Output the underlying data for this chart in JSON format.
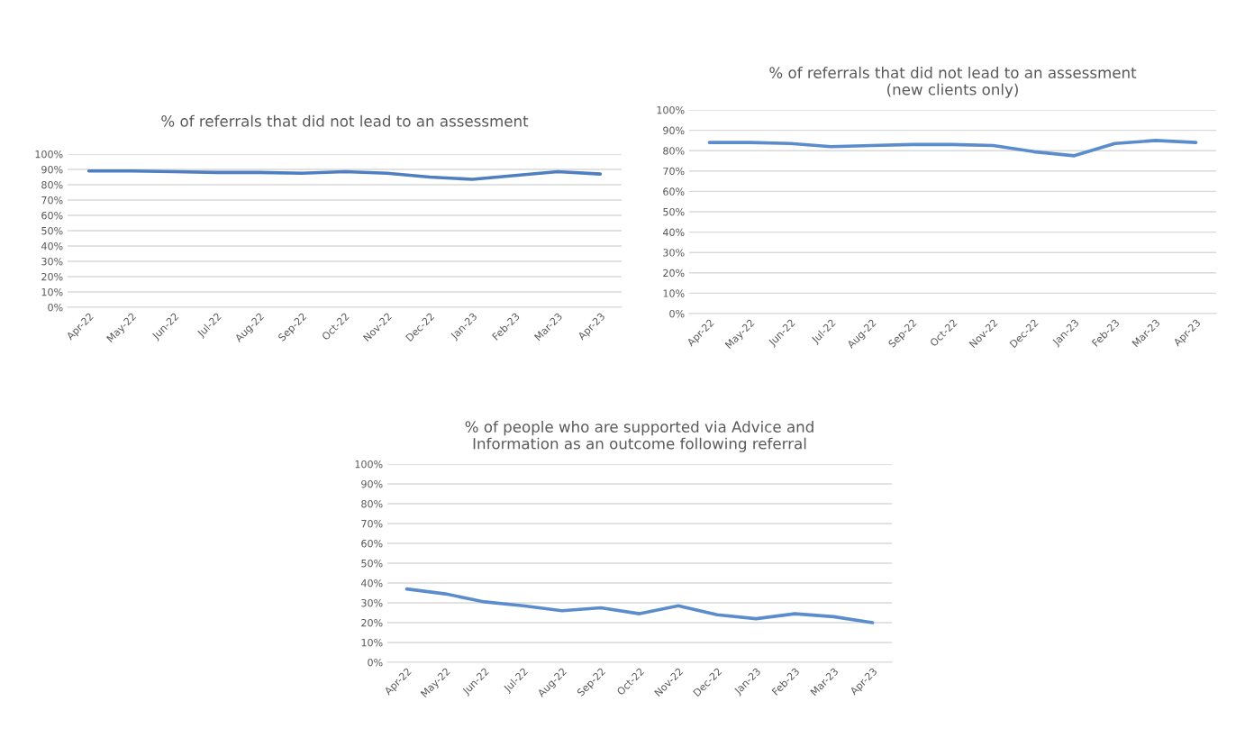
{
  "chart_data": [
    {
      "type": "line",
      "title": "% of referrals that did not lead to an assessment",
      "categories": [
        "Apr-22",
        "May-22",
        "Jun-22",
        "Jul-22",
        "Aug-22",
        "Sep-22",
        "Oct-22",
        "Nov-22",
        "Dec-22",
        "Jan-23",
        "Feb-23",
        "Mar-23",
        "Apr-23"
      ],
      "series": [
        {
          "color": "#4f7fc0",
          "values": [
            89,
            89,
            88.5,
            88,
            88,
            87.5,
            88.5,
            87.5,
            85,
            83.5,
            86,
            88.5,
            87
          ]
        }
      ],
      "ylim": [
        0,
        100
      ],
      "yticks": [
        {
          "value": 0,
          "label": "0%"
        },
        {
          "value": 10,
          "label": "10%"
        },
        {
          "value": 20,
          "label": "20%"
        },
        {
          "value": 30,
          "label": "30%"
        },
        {
          "value": 40,
          "label": "40%"
        },
        {
          "value": 50,
          "label": "50%"
        },
        {
          "value": 60,
          "label": "60%"
        },
        {
          "value": 70,
          "label": "70%"
        },
        {
          "value": 80,
          "label": "80%"
        },
        {
          "value": 90,
          "label": "90%"
        },
        {
          "value": 100,
          "label": "100%"
        }
      ],
      "grid": "y",
      "marker": "none",
      "line_style": "solid"
    },
    {
      "type": "line",
      "title": "% of referrals that did not lead to an assessment\n(new clients only)",
      "categories": [
        "Apr-22",
        "May-22",
        "Jun-22",
        "Jul-22",
        "Aug-22",
        "Sep-22",
        "Oct-22",
        "Nov-22",
        "Dec-22",
        "Jan-23",
        "Feb-23",
        "Mar-23",
        "Apr-23"
      ],
      "series": [
        {
          "color": "#5b8ccc",
          "values": [
            84,
            84,
            83.5,
            82,
            82.5,
            83,
            83,
            82.5,
            79.5,
            77.5,
            83.5,
            85,
            84
          ]
        }
      ],
      "ylim": [
        0,
        100
      ],
      "yticks": [
        {
          "value": 0,
          "label": "0%"
        },
        {
          "value": 10,
          "label": "10%"
        },
        {
          "value": 20,
          "label": "20%"
        },
        {
          "value": 30,
          "label": "30%"
        },
        {
          "value": 40,
          "label": "40%"
        },
        {
          "value": 50,
          "label": "50%"
        },
        {
          "value": 60,
          "label": "60%"
        },
        {
          "value": 70,
          "label": "70%"
        },
        {
          "value": 80,
          "label": "80%"
        },
        {
          "value": 90,
          "label": "90%"
        },
        {
          "value": 100,
          "label": "100%"
        }
      ],
      "grid": "y",
      "marker": "none",
      "line_style": "solid"
    },
    {
      "type": "line",
      "title": "% of people who are supported via Advice and\nInformation as an outcome following referral",
      "categories": [
        "Apr-22",
        "May-22",
        "Jun-22",
        "Jul-22",
        "Aug-22",
        "Sep-22",
        "Oct-22",
        "Nov-22",
        "Dec-22",
        "Jan-23",
        "Feb-23",
        "Mar-23",
        "Apr-23"
      ],
      "series": [
        {
          "color": "#5b8ccc",
          "values": [
            37,
            34.5,
            30.5,
            28.5,
            26,
            27.5,
            24.5,
            28.5,
            24,
            22,
            24.5,
            23,
            20
          ]
        }
      ],
      "ylim": [
        0,
        100
      ],
      "yticks": [
        {
          "value": 0,
          "label": "0%"
        },
        {
          "value": 10,
          "label": "10%"
        },
        {
          "value": 20,
          "label": "20%"
        },
        {
          "value": 30,
          "label": "30%"
        },
        {
          "value": 40,
          "label": "40%"
        },
        {
          "value": 50,
          "label": "50%"
        },
        {
          "value": 60,
          "label": "60%"
        },
        {
          "value": 70,
          "label": "70%"
        },
        {
          "value": 80,
          "label": "80%"
        },
        {
          "value": 90,
          "label": "90%"
        },
        {
          "value": 100,
          "label": "100%"
        }
      ],
      "grid": "y",
      "marker": "none",
      "line_style": "solid"
    }
  ]
}
